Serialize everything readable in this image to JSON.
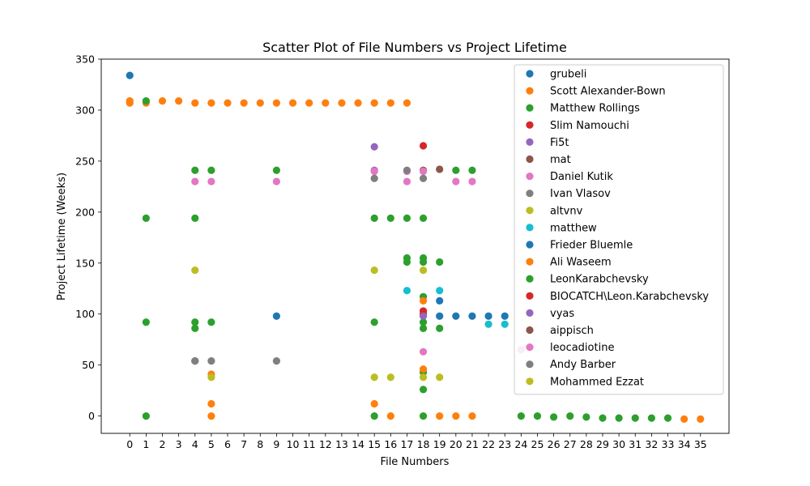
{
  "chart_data": {
    "type": "scatter",
    "title": "Scatter Plot of File Numbers vs Project Lifetime",
    "xlabel": "File Numbers",
    "ylabel": "Project Lifetime (Weeks)",
    "xlim": [
      -1.75,
      36.75
    ],
    "ylim": [
      -17,
      350
    ],
    "xticks": [
      "0",
      "1",
      "2",
      "3",
      "4",
      "5",
      "6",
      "7",
      "8",
      "9",
      "10",
      "11",
      "12",
      "13",
      "14",
      "15",
      "16",
      "17",
      "18",
      "19",
      "20",
      "21",
      "22",
      "23",
      "24",
      "25",
      "26",
      "27",
      "28",
      "29",
      "30",
      "31",
      "32",
      "33",
      "34",
      "35"
    ],
    "yticks": [
      0,
      50,
      100,
      150,
      200,
      250,
      300,
      350
    ],
    "grid": false,
    "legend_position": "upper right",
    "series": [
      {
        "name": "grubeli",
        "color": "#1f77b4",
        "points": [
          [
            0,
            334
          ]
        ]
      },
      {
        "name": "Scott Alexander-Bown",
        "color": "#ff7f0e",
        "points": [
          [
            0,
            309
          ],
          [
            0,
            307
          ],
          [
            1,
            307
          ],
          [
            2,
            309
          ],
          [
            3,
            309
          ],
          [
            4,
            307
          ],
          [
            5,
            307
          ],
          [
            6,
            307
          ],
          [
            7,
            307
          ],
          [
            8,
            307
          ],
          [
            9,
            307
          ],
          [
            10,
            307
          ],
          [
            11,
            307
          ],
          [
            12,
            307
          ],
          [
            13,
            307
          ],
          [
            14,
            307
          ],
          [
            15,
            307
          ],
          [
            16,
            307
          ],
          [
            17,
            307
          ]
        ]
      },
      {
        "name": "Matthew Rollings",
        "color": "#2ca02c",
        "points": [
          [
            1,
            309
          ],
          [
            1,
            194
          ],
          [
            1,
            92
          ],
          [
            1,
            0
          ],
          [
            4,
            241
          ],
          [
            4,
            194
          ],
          [
            4,
            92
          ],
          [
            4,
            86
          ],
          [
            5,
            241
          ],
          [
            5,
            92
          ],
          [
            9,
            241
          ],
          [
            15,
            194
          ],
          [
            15,
            92
          ],
          [
            15,
            0
          ],
          [
            16,
            194
          ],
          [
            17,
            194
          ],
          [
            17,
            155
          ],
          [
            17,
            151
          ],
          [
            18,
            194
          ],
          [
            18,
            155
          ],
          [
            18,
            151
          ],
          [
            18,
            117
          ],
          [
            18,
            92
          ],
          [
            18,
            86
          ],
          [
            18,
            43
          ],
          [
            18,
            26
          ],
          [
            18,
            0
          ],
          [
            19,
            151
          ],
          [
            19,
            86
          ],
          [
            20,
            241
          ],
          [
            21,
            241
          ]
        ]
      },
      {
        "name": "Slim Namouchi",
        "color": "#d62728",
        "points": [
          [
            18,
            265
          ],
          [
            18,
            103
          ]
        ]
      },
      {
        "name": "Fi5t",
        "color": "#9467bd",
        "points": [
          [
            15,
            264
          ],
          [
            15,
            241
          ]
        ]
      },
      {
        "name": "mat",
        "color": "#8c564b",
        "points": [
          [
            18,
            241
          ],
          [
            19,
            242
          ]
        ]
      },
      {
        "name": "Daniel Kutik",
        "color": "#e377c2",
        "points": [
          [
            4,
            230
          ],
          [
            5,
            230
          ],
          [
            9,
            230
          ],
          [
            15,
            240
          ],
          [
            17,
            230
          ],
          [
            17,
            240
          ],
          [
            18,
            240
          ],
          [
            18,
            63
          ],
          [
            20,
            230
          ],
          [
            21,
            230
          ]
        ]
      },
      {
        "name": "Ivan Vlasov",
        "color": "#7f7f7f",
        "points": [
          [
            15,
            233
          ],
          [
            17,
            241
          ],
          [
            18,
            233
          ]
        ]
      },
      {
        "name": "altvnv",
        "color": "#bcbd22",
        "points": [
          [
            4,
            143
          ],
          [
            15,
            143
          ],
          [
            18,
            143
          ]
        ]
      },
      {
        "name": "matthew",
        "color": "#17becf",
        "points": [
          [
            17,
            123
          ],
          [
            19,
            123
          ],
          [
            22,
            90
          ],
          [
            23,
            90
          ]
        ]
      },
      {
        "name": "Frieder Bluemle",
        "color": "#1f77b4",
        "points": [
          [
            9,
            98
          ],
          [
            19,
            113
          ],
          [
            19,
            98
          ],
          [
            20,
            98
          ],
          [
            21,
            98
          ],
          [
            22,
            98
          ],
          [
            23,
            98
          ]
        ]
      },
      {
        "name": "Ali Waseem",
        "color": "#ff7f0e",
        "points": [
          [
            5,
            41
          ],
          [
            5,
            12
          ],
          [
            5,
            0
          ],
          [
            15,
            12
          ],
          [
            16,
            0
          ],
          [
            18,
            113
          ],
          [
            18,
            46
          ],
          [
            19,
            0
          ],
          [
            20,
            0
          ],
          [
            21,
            0
          ],
          [
            34,
            -3
          ],
          [
            35,
            -3
          ]
        ]
      },
      {
        "name": "LeonKarabchevsky",
        "color": "#2ca02c",
        "points": [
          [
            24,
            0
          ],
          [
            25,
            0
          ],
          [
            26,
            -1
          ],
          [
            27,
            0
          ],
          [
            28,
            -1
          ],
          [
            29,
            -2
          ],
          [
            30,
            -2
          ],
          [
            31,
            -2
          ],
          [
            32,
            -2
          ],
          [
            33,
            -2
          ]
        ]
      },
      {
        "name": "BIOCATCH\\Leon.Karabchevsky",
        "color": "#d62728",
        "points": [
          [
            18,
            100
          ]
        ]
      },
      {
        "name": "vyas",
        "color": "#9467bd",
        "points": [
          [
            18,
            98
          ]
        ]
      },
      {
        "name": "aippisch",
        "color": "#8c564b",
        "points": [
          [
            4,
            54
          ]
        ]
      },
      {
        "name": "leocadiotine",
        "color": "#e377c2",
        "points": [
          [
            24,
            65
          ]
        ]
      },
      {
        "name": "Andy Barber",
        "color": "#7f7f7f",
        "points": [
          [
            4,
            54
          ],
          [
            5,
            54
          ],
          [
            9,
            54
          ]
        ]
      },
      {
        "name": "Mohammed Ezzat",
        "color": "#bcbd22",
        "points": [
          [
            5,
            38
          ],
          [
            15,
            38
          ],
          [
            16,
            38
          ],
          [
            18,
            38
          ],
          [
            19,
            38
          ]
        ]
      }
    ]
  }
}
